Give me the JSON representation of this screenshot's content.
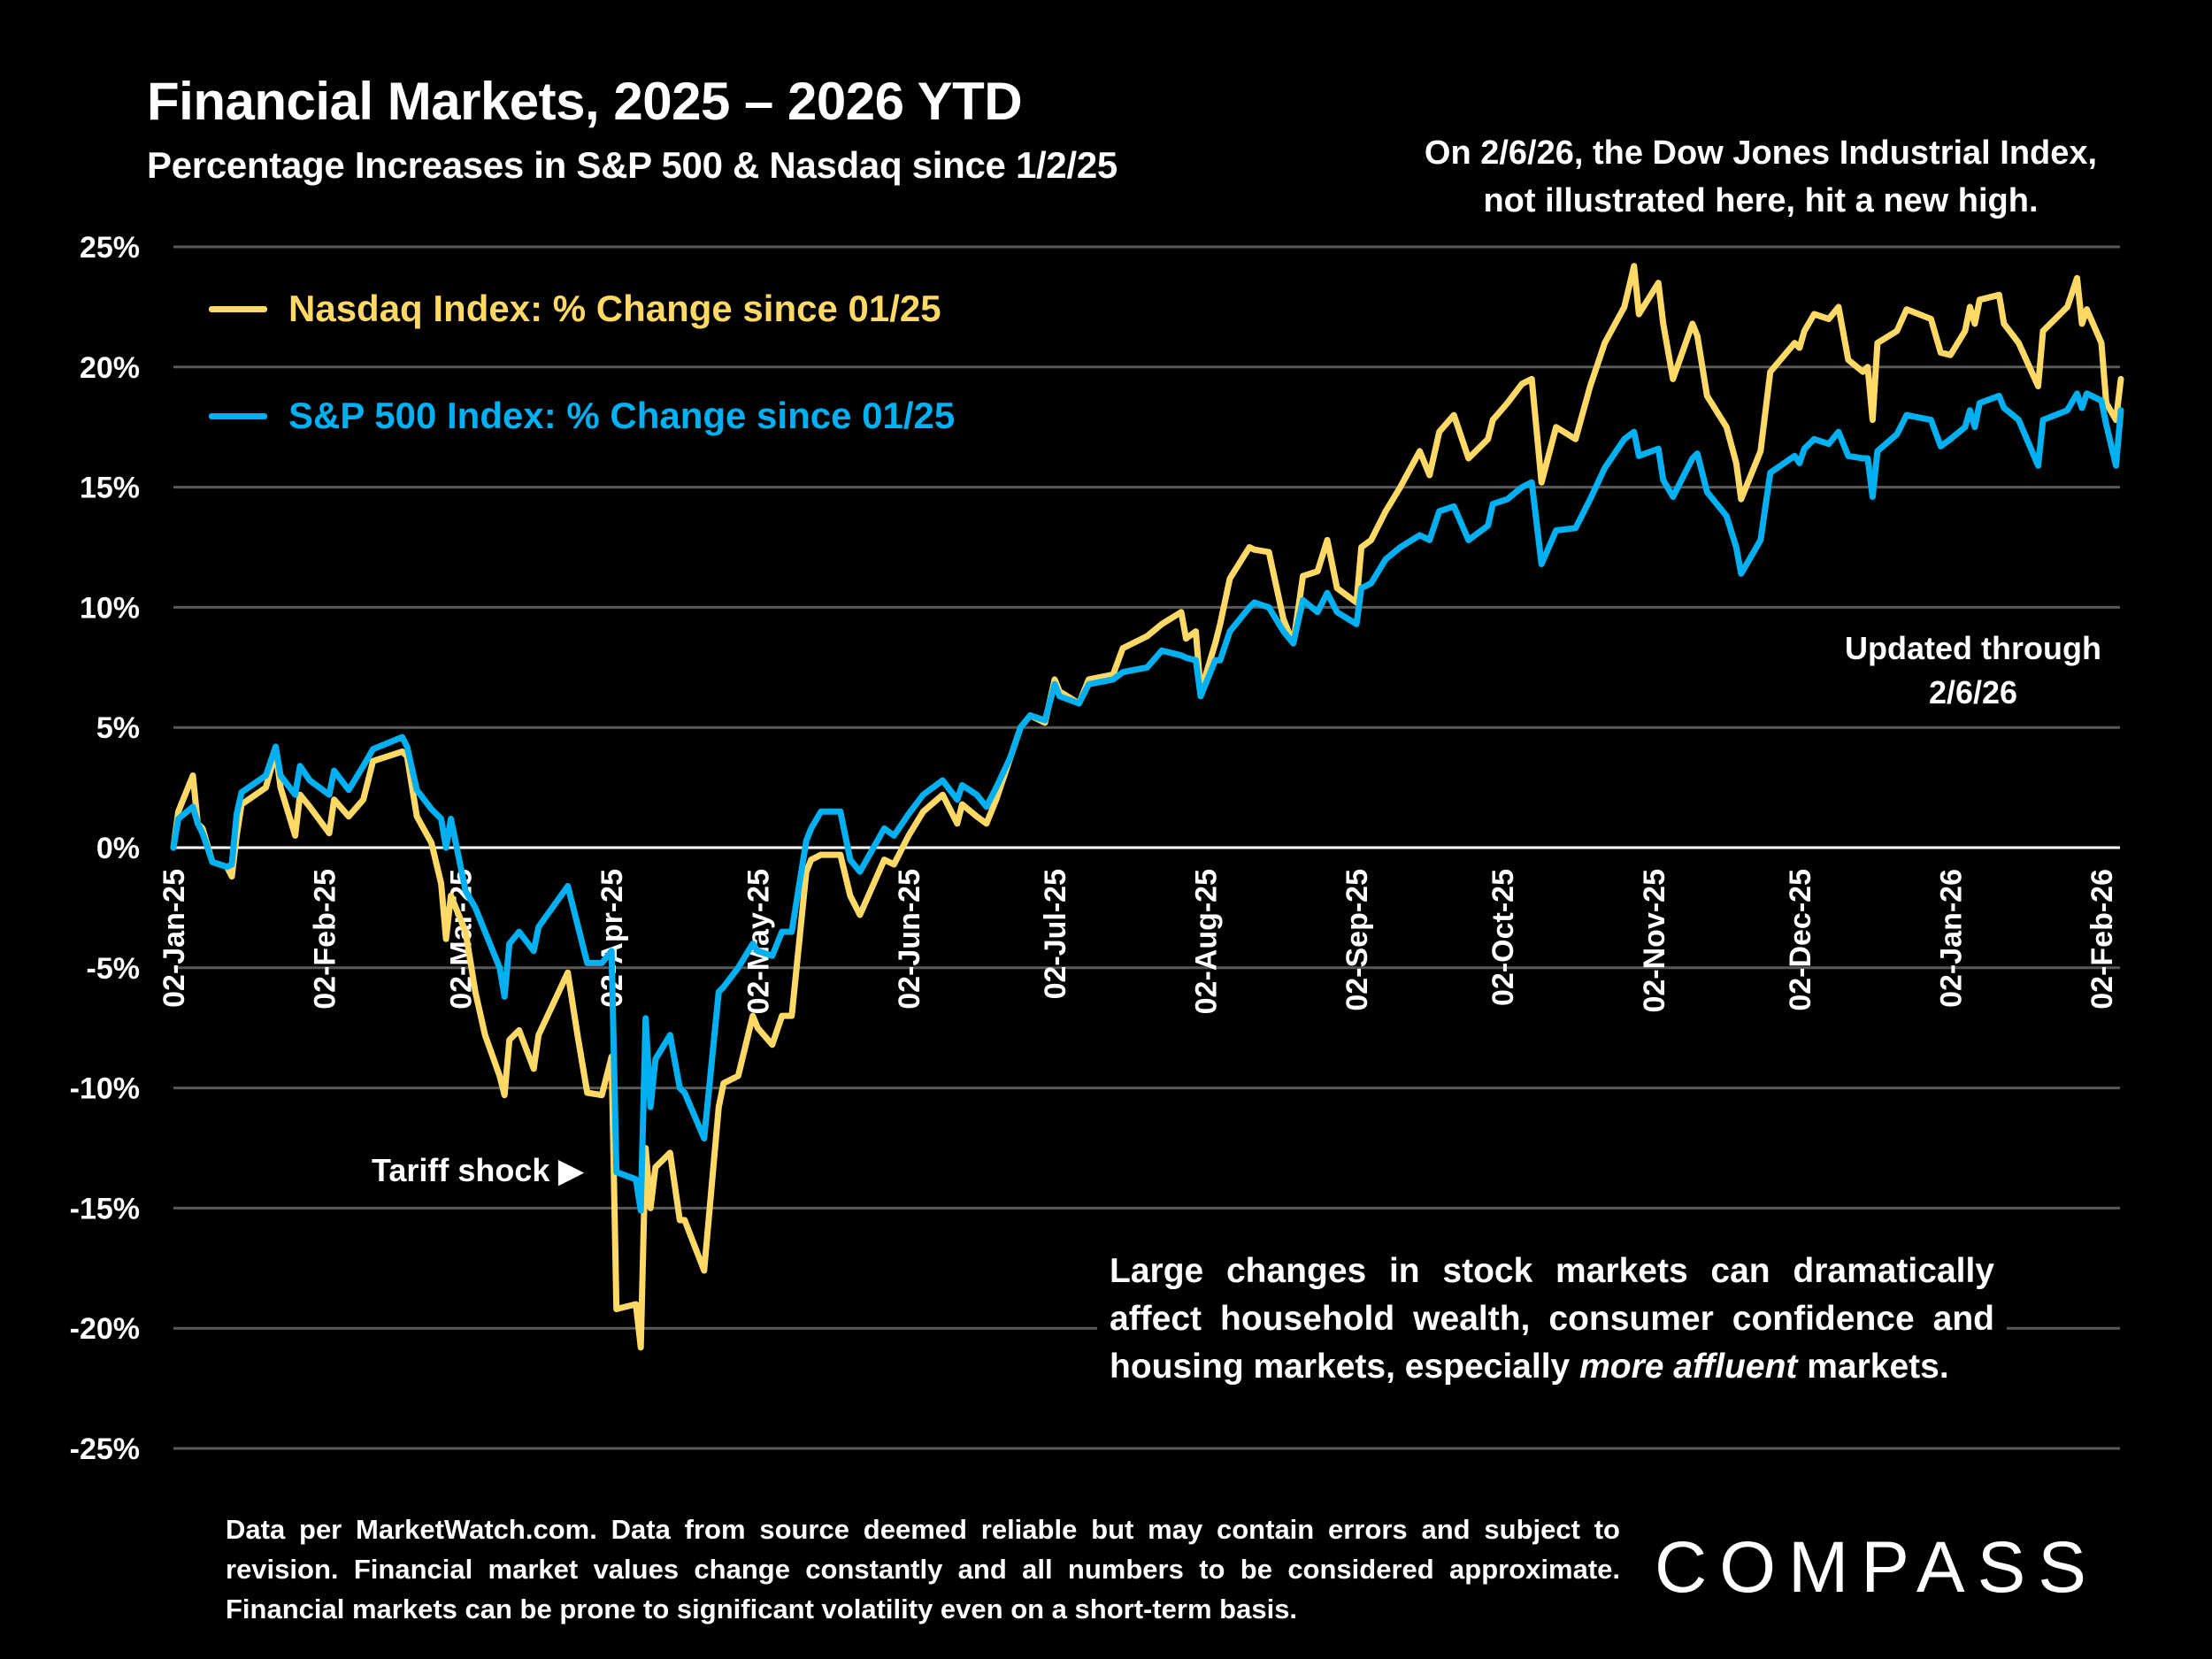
{
  "header": {
    "title": "Financial Markets, 2025 – 2026 YTD",
    "subtitle": "Percentage Increases in S&P 500 & Nasdaq since 1/2/25"
  },
  "annotations": {
    "note_line1": "On 2/6/26, the Dow Jones Industrial Index,",
    "note_line2": "not illustrated here, hit a new high.",
    "updated_line1": "Updated through",
    "updated_line2": "2/6/26",
    "tariff_shock": "Tariff shock ▶",
    "paragraph_before": "Large changes in stock markets can dramatically affect household wealth, consumer confidence and housing markets, especially ",
    "paragraph_italic": "more affluent",
    "paragraph_after": " markets."
  },
  "footer": {
    "disclaimer": "Data per MarketWatch.com. Data from source deemed reliable but may contain errors and subject to revision. Financial market values change constantly and all numbers to be considered approximate. Financial markets can be prone to significant volatility even on a short-term basis.",
    "logo_text": "COMPASS"
  },
  "chart_data": {
    "type": "line",
    "title": "Financial Markets, 2025 – 2026 YTD",
    "subtitle": "Percentage Increases in S&P 500 & Nasdaq since 1/2/25",
    "xlabel": "",
    "ylabel": "",
    "ylim": [
      -25,
      25
    ],
    "y_ticks": [
      25,
      20,
      15,
      10,
      5,
      0,
      -5,
      -10,
      -15,
      -20,
      -25
    ],
    "y_tick_labels": [
      "25%",
      "20%",
      "15%",
      "10%",
      "5%",
      "0%",
      "-5%",
      "-10%",
      "-15%",
      "-20%",
      "-25%"
    ],
    "x_range": [
      "2025-01-02",
      "2026-02-06"
    ],
    "x_ticks": [
      "2025-01-02",
      "2025-02-02",
      "2025-03-02",
      "2025-04-02",
      "2025-05-02",
      "2025-06-02",
      "2025-07-02",
      "2025-08-02",
      "2025-09-02",
      "2025-10-02",
      "2025-11-02",
      "2025-12-02",
      "2026-01-02",
      "2026-02-02"
    ],
    "x_tick_labels": [
      "02-Jan-25",
      "02-Feb-25",
      "02-Mar-25",
      "02-Apr-25",
      "02-May-25",
      "02-Jun-25",
      "02-Jul-25",
      "02-Aug-25",
      "02-Sep-25",
      "02-Oct-25",
      "02-Nov-25",
      "02-Dec-25",
      "02-Jan-26",
      "02-Feb-26"
    ],
    "grid": true,
    "legend_position": "top-left",
    "colors": {
      "nasdaq": "#FFD966",
      "sp500": "#00B0F0",
      "grid": "#595959",
      "zero_line": "#FFFFFF",
      "background": "#000000"
    },
    "x": [
      "2025-01-02",
      "2025-01-03",
      "2025-01-06",
      "2025-01-07",
      "2025-01-08",
      "2025-01-10",
      "2025-01-13",
      "2025-01-14",
      "2025-01-15",
      "2025-01-16",
      "2025-01-21",
      "2025-01-23",
      "2025-01-24",
      "2025-01-27",
      "2025-01-28",
      "2025-01-30",
      "2025-02-03",
      "2025-02-04",
      "2025-02-07",
      "2025-02-10",
      "2025-02-12",
      "2025-02-18",
      "2025-02-19",
      "2025-02-21",
      "2025-02-24",
      "2025-02-26",
      "2025-02-27",
      "2025-02-28",
      "2025-03-03",
      "2025-03-05",
      "2025-03-07",
      "2025-03-10",
      "2025-03-11",
      "2025-03-12",
      "2025-03-14",
      "2025-03-17",
      "2025-03-18",
      "2025-03-24",
      "2025-03-26",
      "2025-03-28",
      "2025-03-31",
      "2025-04-02",
      "2025-04-03",
      "2025-04-07",
      "2025-04-08",
      "2025-04-09",
      "2025-04-10",
      "2025-04-11",
      "2025-04-14",
      "2025-04-16",
      "2025-04-17",
      "2025-04-21",
      "2025-04-24",
      "2025-04-25",
      "2025-04-28",
      "2025-05-01",
      "2025-05-02",
      "2025-05-05",
      "2025-05-07",
      "2025-05-09",
      "2025-05-12",
      "2025-05-13",
      "2025-05-15",
      "2025-05-19",
      "2025-05-21",
      "2025-05-23",
      "2025-05-28",
      "2025-05-30",
      "2025-06-02",
      "2025-06-05",
      "2025-06-09",
      "2025-06-12",
      "2025-06-13",
      "2025-06-16",
      "2025-06-18",
      "2025-06-20",
      "2025-06-23",
      "2025-06-25",
      "2025-06-27",
      "2025-06-30",
      "2025-07-02",
      "2025-07-03",
      "2025-07-07",
      "2025-07-09",
      "2025-07-14",
      "2025-07-16",
      "2025-07-21",
      "2025-07-24",
      "2025-07-28",
      "2025-07-29",
      "2025-07-31",
      "2025-08-01",
      "2025-08-04",
      "2025-08-05",
      "2025-08-07",
      "2025-08-11",
      "2025-08-12",
      "2025-08-15",
      "2025-08-18",
      "2025-08-20",
      "2025-08-22",
      "2025-08-25",
      "2025-08-27",
      "2025-08-29",
      "2025-09-02",
      "2025-09-03",
      "2025-09-05",
      "2025-09-08",
      "2025-09-11",
      "2025-09-15",
      "2025-09-17",
      "2025-09-19",
      "2025-09-22",
      "2025-09-25",
      "2025-09-29",
      "2025-09-30",
      "2025-10-03",
      "2025-10-06",
      "2025-10-08",
      "2025-10-10",
      "2025-10-13",
      "2025-10-17",
      "2025-10-20",
      "2025-10-23",
      "2025-10-27",
      "2025-10-29",
      "2025-10-30",
      "2025-11-03",
      "2025-11-04",
      "2025-11-06",
      "2025-11-10",
      "2025-11-11",
      "2025-11-13",
      "2025-11-17",
      "2025-11-19",
      "2025-11-20",
      "2025-11-24",
      "2025-11-26",
      "2025-12-01",
      "2025-12-02",
      "2025-12-03",
      "2025-12-05",
      "2025-12-08",
      "2025-12-10",
      "2025-12-12",
      "2025-12-15",
      "2025-12-16",
      "2025-12-17",
      "2025-12-18",
      "2025-12-22",
      "2025-12-24",
      "2025-12-29",
      "2025-12-31",
      "2026-01-02",
      "2026-01-05",
      "2026-01-06",
      "2026-01-07",
      "2026-01-08",
      "2026-01-12",
      "2026-01-13",
      "2026-01-16",
      "2026-01-20",
      "2026-01-21",
      "2026-01-26",
      "2026-01-28",
      "2026-01-29",
      "2026-01-30",
      "2026-02-02",
      "2026-02-03",
      "2026-02-05",
      "2026-02-06"
    ],
    "series": [
      {
        "name": "Nasdaq Index: % Change since 01/25",
        "color": "#FFD966",
        "values": [
          0,
          1.5,
          3.0,
          1.0,
          0.8,
          -0.6,
          -0.8,
          -1.2,
          0.5,
          1.8,
          2.5,
          4.0,
          2.5,
          0.5,
          2.2,
          1.7,
          0.6,
          2.0,
          1.3,
          2.0,
          3.6,
          4.0,
          3.8,
          1.3,
          0.2,
          -1.5,
          -3.8,
          -2.0,
          -3.5,
          -6.0,
          -7.8,
          -9.5,
          -10.3,
          -8.0,
          -7.6,
          -9.2,
          -7.8,
          -5.2,
          -7.8,
          -10.2,
          -10.3,
          -8.7,
          -19.2,
          -19.0,
          -20.8,
          -12.5,
          -15.0,
          -13.3,
          -12.7,
          -15.5,
          -15.5,
          -17.6,
          -10.8,
          -9.8,
          -9.5,
          -7.0,
          -7.5,
          -8.2,
          -7.0,
          -7.0,
          -1.0,
          -0.5,
          -0.3,
          -0.3,
          -2.0,
          -2.8,
          -0.5,
          -0.7,
          0.5,
          1.5,
          2.2,
          1.0,
          1.8,
          1.3,
          1.0,
          2.0,
          3.8,
          5.0,
          5.5,
          5.2,
          7.0,
          6.5,
          6.0,
          7.0,
          7.2,
          8.3,
          8.8,
          9.3,
          9.8,
          8.7,
          9.0,
          6.5,
          8.5,
          9.3,
          11.2,
          12.5,
          12.4,
          12.3,
          9.5,
          8.5,
          11.3,
          11.5,
          12.8,
          10.8,
          10.2,
          12.5,
          12.8,
          14.0,
          15.0,
          16.5,
          15.5,
          17.3,
          18.0,
          16.2,
          17.0,
          17.8,
          18.5,
          19.3,
          19.5,
          15.2,
          17.5,
          17.0,
          19.2,
          21.0,
          22.5,
          24.2,
          22.2,
          23.5,
          21.8,
          19.5,
          21.8,
          21.3,
          18.8,
          17.5,
          16.0,
          14.5,
          16.5,
          19.8,
          21.0,
          20.8,
          21.5,
          22.2,
          22.0,
          22.5,
          20.3,
          19.8,
          20.0,
          17.8,
          21.0,
          21.5,
          22.4,
          22.0,
          20.6,
          20.5,
          21.5,
          22.5,
          21.8,
          22.8,
          23.0,
          21.8,
          21.0,
          19.2,
          21.5,
          22.5,
          23.7,
          21.8,
          22.4,
          21.0,
          18.5,
          17.8,
          19.5
        ]
      },
      {
        "name": "S&P 500 Index: % Change since 01/25",
        "color": "#00B0F0",
        "values": [
          0,
          1.2,
          1.7,
          1.0,
          0.6,
          -0.6,
          -0.8,
          -0.7,
          1.4,
          2.3,
          3.0,
          4.2,
          3.0,
          2.2,
          3.4,
          2.8,
          2.2,
          3.2,
          2.4,
          3.4,
          4.1,
          4.6,
          4.2,
          2.4,
          1.6,
          1.2,
          0.0,
          1.2,
          -1.8,
          -2.5,
          -3.5,
          -5.0,
          -6.2,
          -4.0,
          -3.5,
          -4.3,
          -3.3,
          -1.6,
          -3.2,
          -4.8,
          -4.8,
          -4.3,
          -13.5,
          -13.8,
          -15.1,
          -7.1,
          -10.8,
          -8.8,
          -7.8,
          -10.0,
          -10.2,
          -12.1,
          -6.0,
          -5.8,
          -5.0,
          -4.0,
          -4.3,
          -4.5,
          -3.5,
          -3.5,
          0.3,
          0.8,
          1.5,
          1.5,
          -0.5,
          -1.0,
          0.8,
          0.5,
          1.4,
          2.2,
          2.8,
          2.0,
          2.6,
          2.2,
          1.7,
          2.5,
          3.8,
          5.0,
          5.5,
          5.3,
          6.8,
          6.3,
          6.0,
          6.8,
          7.0,
          7.3,
          7.5,
          8.2,
          8.0,
          7.9,
          7.8,
          6.3,
          7.8,
          7.8,
          9.0,
          10.0,
          10.2,
          10.0,
          9.0,
          8.5,
          10.3,
          9.8,
          10.6,
          9.8,
          9.3,
          10.8,
          11.0,
          12.0,
          12.5,
          13.0,
          12.8,
          14.0,
          14.2,
          12.8,
          13.4,
          14.3,
          14.5,
          15.0,
          15.2,
          11.8,
          13.2,
          13.3,
          14.5,
          15.8,
          17.0,
          17.3,
          16.3,
          16.6,
          15.3,
          14.6,
          16.2,
          16.4,
          14.8,
          13.8,
          12.5,
          11.4,
          12.8,
          15.6,
          16.3,
          16.0,
          16.6,
          17.0,
          16.8,
          17.3,
          16.3,
          16.2,
          16.2,
          14.6,
          16.5,
          17.2,
          18.0,
          17.8,
          16.7,
          17.0,
          17.5,
          18.2,
          17.5,
          18.5,
          18.8,
          18.3,
          17.8,
          15.9,
          17.8,
          18.2,
          18.9,
          18.3,
          18.9,
          18.6,
          17.6,
          15.9,
          18.2
        ]
      }
    ]
  }
}
